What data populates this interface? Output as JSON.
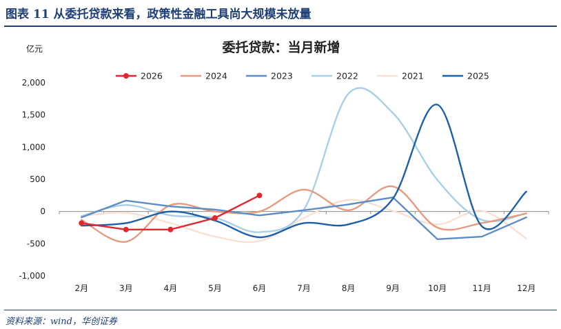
{
  "figure": {
    "title": "图表 11   从委托贷款来看，政策性金融工具尚大规模未放量",
    "source": "资料来源：wind，华创证券"
  },
  "chart_data": {
    "type": "line",
    "title": "委托贷款：当月新增",
    "ylabel": "亿元",
    "xlabel": "",
    "ylim": [
      -1000,
      2000
    ],
    "yticks": [
      2000,
      1500,
      1000,
      500,
      0,
      -500,
      -1000
    ],
    "ytick_labels": [
      "2,000",
      "1,500",
      "1,000",
      "500",
      "0",
      "-500",
      "-1,000"
    ],
    "categories": [
      "2月",
      "3月",
      "4月",
      "5月",
      "6月",
      "7月",
      "8月",
      "9月",
      "10月",
      "11月",
      "12月"
    ],
    "legend_position": "top",
    "grid": false,
    "series": [
      {
        "name": "2026",
        "color": "#e0282e",
        "markers": true,
        "smooth": false,
        "values": [
          -180,
          -280,
          -280,
          -100,
          250,
          null,
          null,
          null,
          null,
          null,
          null
        ]
      },
      {
        "name": "2024",
        "color": "#e89a80",
        "markers": false,
        "smooth": true,
        "values": [
          -130,
          -470,
          100,
          0,
          0,
          340,
          20,
          390,
          -250,
          -180,
          -30
        ]
      },
      {
        "name": "2023",
        "color": "#5b8ec7",
        "markers": false,
        "smooth": false,
        "values": [
          -90,
          170,
          80,
          30,
          -60,
          20,
          110,
          220,
          -430,
          -390,
          -90
        ]
      },
      {
        "name": "2022",
        "color": "#a9cfe6",
        "markers": false,
        "smooth": true,
        "values": [
          -70,
          100,
          -60,
          -100,
          -320,
          30,
          1830,
          1530,
          490,
          -130,
          -30
        ]
      },
      {
        "name": "2021",
        "color": "#fae0d2",
        "markers": false,
        "smooth": true,
        "values": [
          -70,
          -20,
          -180,
          -390,
          -460,
          -100,
          180,
          10,
          -200,
          10,
          -420
        ]
      },
      {
        "name": "2025",
        "color": "#1b5faa",
        "markers": false,
        "smooth": true,
        "values": [
          -220,
          -180,
          0,
          -140,
          -400,
          -180,
          -200,
          200,
          1660,
          -230,
          310
        ]
      }
    ]
  }
}
